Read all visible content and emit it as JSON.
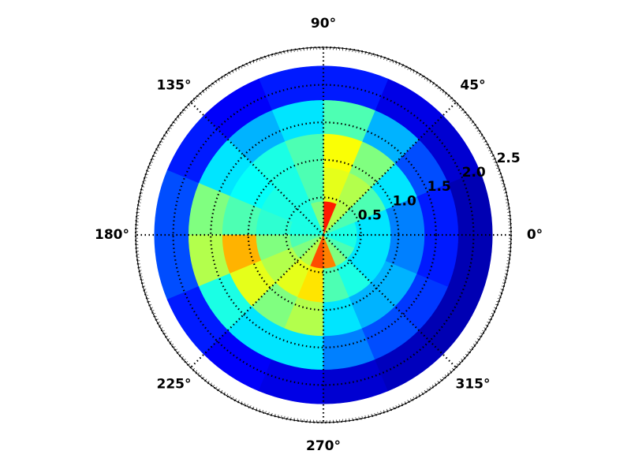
{
  "chart_data": {
    "type": "polar_heatmap",
    "colormap": "jet",
    "clim": [
      0,
      1
    ],
    "rlim": [
      0,
      2.5
    ],
    "rticks": [
      0.5,
      {
        "value": 1,
        "label": "1.0"
      },
      1.5,
      {
        "value": 2,
        "label": "2.0"
      },
      2.5
    ],
    "thetaticks": [
      {
        "value": 0,
        "label": "0°"
      },
      {
        "value": 45,
        "label": "45°"
      },
      {
        "value": 90,
        "label": "90°"
      },
      {
        "value": 135,
        "label": "135°"
      },
      {
        "value": 180,
        "label": "180°"
      },
      {
        "value": 225,
        "label": "225°"
      },
      {
        "value": 270,
        "label": "270°"
      },
      {
        "value": 315,
        "label": "315°"
      }
    ],
    "grid": true,
    "theta_bins": [
      0,
      22.5,
      45,
      67.5,
      90,
      112.5,
      135,
      157.5,
      180,
      202.5,
      225,
      247.5,
      270,
      292.5,
      315,
      337.5,
      360
    ],
    "r_bins": [
      0,
      0.45,
      0.9,
      1.35,
      1.8,
      2.25
    ],
    "values": [
      [
        0.4,
        0.35,
        0.25,
        0.15,
        0.05
      ],
      [
        0.45,
        0.45,
        0.35,
        0.2,
        0.08
      ],
      [
        0.55,
        0.55,
        0.5,
        0.3,
        0.1
      ],
      [
        0.85,
        0.6,
        0.62,
        0.45,
        0.15
      ],
      [
        0.5,
        0.45,
        0.45,
        0.35,
        0.15
      ],
      [
        0.4,
        0.4,
        0.4,
        0.3,
        0.12
      ],
      [
        0.4,
        0.4,
        0.38,
        0.35,
        0.15
      ],
      [
        0.4,
        0.42,
        0.45,
        0.5,
        0.2
      ],
      [
        0.45,
        0.5,
        0.7,
        0.55,
        0.2
      ],
      [
        0.5,
        0.55,
        0.6,
        0.4,
        0.15
      ],
      [
        0.55,
        0.6,
        0.5,
        0.35,
        0.12
      ],
      [
        0.8,
        0.65,
        0.55,
        0.35,
        0.1
      ],
      [
        0.75,
        0.45,
        0.35,
        0.25,
        0.08
      ],
      [
        0.5,
        0.4,
        0.3,
        0.2,
        0.06
      ],
      [
        0.45,
        0.35,
        0.3,
        0.18,
        0.05
      ],
      [
        0.4,
        0.35,
        0.25,
        0.15,
        0.05
      ]
    ]
  }
}
